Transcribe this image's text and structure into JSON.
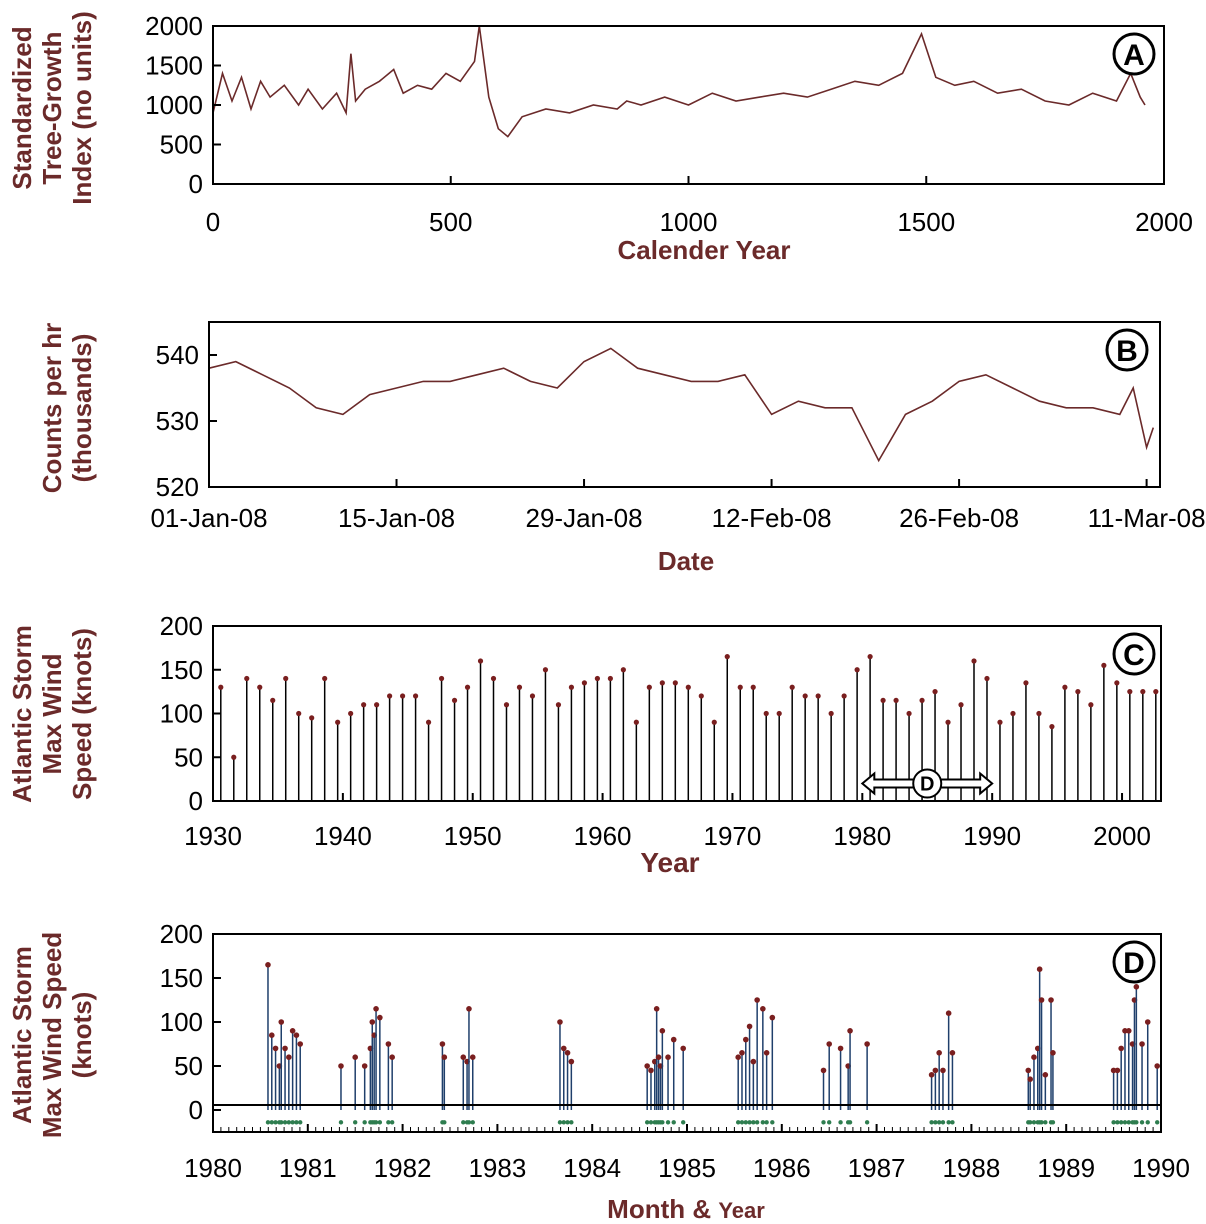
{
  "colors": {
    "series_a": "#6b2a2a",
    "series_b": "#6b2a2a",
    "storm_stem_c": "#000000",
    "storm_marker_c": "#7a1f1f",
    "storm_stem_d": "#1f3f6b",
    "storm_marker_d": "#7a1f1f",
    "genesis_marker_d": "#2e7d4f",
    "axis_title": "#6b2a2a"
  },
  "chart_data": [
    {
      "panel": "A",
      "type": "line",
      "title": "",
      "xlabel": "Calender Year",
      "ylabel_lines": [
        "Standardized",
        "Tree-Growth",
        "Index (no units)"
      ],
      "xlim": [
        0,
        2000
      ],
      "ylim": [
        0,
        2000
      ],
      "xticks": [
        0,
        500,
        1000,
        1500,
        2000
      ],
      "xtick_labels": [
        "0",
        "500",
        "1000",
        "1500",
        "2000"
      ],
      "yticks": [
        0,
        500,
        1000,
        1500,
        2000
      ],
      "ytick_labels": [
        "0",
        "500",
        "1000",
        "1500",
        "2000"
      ],
      "grid": false,
      "series": [
        {
          "x": [
            0,
            20,
            40,
            60,
            80,
            100,
            120,
            150,
            180,
            200,
            230,
            260,
            280,
            290,
            300,
            320,
            350,
            380,
            400,
            430,
            460,
            490,
            520,
            550,
            560,
            580,
            600,
            620,
            650,
            700,
            750,
            800,
            850,
            870,
            900,
            950,
            1000,
            1050,
            1100,
            1150,
            1200,
            1250,
            1300,
            1350,
            1400,
            1450,
            1490,
            1520,
            1560,
            1600,
            1650,
            1700,
            1750,
            1800,
            1850,
            1900,
            1930,
            1950,
            1960
          ],
          "y": [
            900,
            1400,
            1050,
            1350,
            950,
            1300,
            1100,
            1250,
            1000,
            1200,
            950,
            1150,
            900,
            1650,
            1050,
            1200,
            1300,
            1450,
            1150,
            1250,
            1200,
            1400,
            1300,
            1550,
            2000,
            1100,
            700,
            600,
            850,
            950,
            900,
            1000,
            950,
            1050,
            1000,
            1100,
            1000,
            1150,
            1050,
            1100,
            1150,
            1100,
            1200,
            1300,
            1250,
            1400,
            1900,
            1350,
            1250,
            1300,
            1150,
            1200,
            1050,
            1000,
            1150,
            1050,
            1400,
            1100,
            1000
          ]
        }
      ]
    },
    {
      "panel": "B",
      "type": "line",
      "title": "",
      "xlabel": "Date",
      "ylabel_lines": [
        "Counts per hr",
        "(thousands)"
      ],
      "xlim": [
        0,
        71
      ],
      "ylim": [
        520,
        545
      ],
      "xticks": [
        0,
        14,
        28,
        42,
        56,
        70
      ],
      "xtick_labels": [
        "01-Jan-08",
        "15-Jan-08",
        "29-Jan-08",
        "12-Feb-08",
        "26-Feb-08",
        "11-Mar-08"
      ],
      "yticks": [
        520,
        530,
        540
      ],
      "ytick_labels": [
        "520",
        "530",
        "540"
      ],
      "grid": false,
      "series": [
        {
          "x": [
            0,
            2,
            4,
            6,
            8,
            10,
            12,
            14,
            16,
            18,
            20,
            22,
            24,
            26,
            28,
            30,
            32,
            34,
            36,
            38,
            40,
            42,
            44,
            46,
            48,
            49,
            50,
            52,
            54,
            56,
            58,
            60,
            62,
            64,
            66,
            68,
            69,
            70,
            70.5
          ],
          "y": [
            538,
            539,
            537,
            535,
            532,
            531,
            534,
            535,
            536,
            536,
            537,
            538,
            536,
            535,
            539,
            541,
            538,
            537,
            536,
            536,
            537,
            531,
            533,
            532,
            532,
            528,
            524,
            531,
            533,
            536,
            537,
            535,
            533,
            532,
            532,
            531,
            535,
            526,
            529
          ]
        }
      ]
    },
    {
      "panel": "C",
      "type": "scatter",
      "title": "",
      "xlabel": "Year",
      "ylabel_lines": [
        "Atlantic Storm",
        "Max Wind",
        "Speed (knots)"
      ],
      "xlim": [
        1930,
        2003
      ],
      "ylim": [
        0,
        200
      ],
      "xticks": [
        1930,
        1940,
        1950,
        1960,
        1970,
        1980,
        1990,
        2000
      ],
      "xtick_labels": [
        "1930",
        "1940",
        "1950",
        "1960",
        "1970",
        "1980",
        "1990",
        "2000"
      ],
      "yticks": [
        0,
        50,
        100,
        150,
        200
      ],
      "ytick_labels": [
        "0",
        "50",
        "100",
        "150",
        "200"
      ],
      "grid": false,
      "annotation": {
        "label": "D",
        "x_from": 1980,
        "x_to": 1990,
        "y": 20
      },
      "storms_by_year": [
        [
          1930,
          130
        ],
        [
          1931,
          50
        ],
        [
          1932,
          140
        ],
        [
          1933,
          130
        ],
        [
          1934,
          115
        ],
        [
          1935,
          140
        ],
        [
          1936,
          100
        ],
        [
          1937,
          95
        ],
        [
          1938,
          140
        ],
        [
          1939,
          90
        ],
        [
          1940,
          100
        ],
        [
          1941,
          110
        ],
        [
          1942,
          110
        ],
        [
          1943,
          120
        ],
        [
          1944,
          120
        ],
        [
          1945,
          120
        ],
        [
          1946,
          90
        ],
        [
          1947,
          140
        ],
        [
          1948,
          115
        ],
        [
          1949,
          130
        ],
        [
          1950,
          160
        ],
        [
          1951,
          140
        ],
        [
          1952,
          110
        ],
        [
          1953,
          130
        ],
        [
          1954,
          120
        ],
        [
          1955,
          150
        ],
        [
          1956,
          110
        ],
        [
          1957,
          130
        ],
        [
          1958,
          135
        ],
        [
          1959,
          140
        ],
        [
          1960,
          140
        ],
        [
          1961,
          150
        ],
        [
          1962,
          90
        ],
        [
          1963,
          130
        ],
        [
          1964,
          135
        ],
        [
          1965,
          135
        ],
        [
          1966,
          130
        ],
        [
          1967,
          120
        ],
        [
          1968,
          90
        ],
        [
          1969,
          165
        ],
        [
          1970,
          130
        ],
        [
          1971,
          130
        ],
        [
          1972,
          100
        ],
        [
          1973,
          100
        ],
        [
          1974,
          130
        ],
        [
          1975,
          120
        ],
        [
          1976,
          120
        ],
        [
          1977,
          100
        ],
        [
          1978,
          120
        ],
        [
          1979,
          150
        ],
        [
          1980,
          165
        ],
        [
          1981,
          115
        ],
        [
          1982,
          115
        ],
        [
          1983,
          100
        ],
        [
          1984,
          115
        ],
        [
          1985,
          125
        ],
        [
          1986,
          90
        ],
        [
          1987,
          110
        ],
        [
          1988,
          160
        ],
        [
          1989,
          140
        ],
        [
          1990,
          90
        ],
        [
          1991,
          100
        ],
        [
          1992,
          135
        ],
        [
          1993,
          100
        ],
        [
          1994,
          85
        ],
        [
          1995,
          130
        ],
        [
          1996,
          125
        ],
        [
          1997,
          110
        ],
        [
          1998,
          155
        ],
        [
          1999,
          135
        ],
        [
          2000,
          125
        ],
        [
          2001,
          125
        ],
        [
          2002,
          125
        ]
      ]
    },
    {
      "panel": "D",
      "type": "scatter",
      "title": "",
      "xlabel_parts": [
        "Month & ",
        "Year"
      ],
      "ylabel_lines": [
        "Atlantic Storm",
        "Max Wind Speed",
        "(knots)"
      ],
      "xlim": [
        1980,
        1990
      ],
      "ylim": [
        -25,
        200
      ],
      "xticks": [
        1980,
        1981,
        1982,
        1983,
        1984,
        1985,
        1986,
        1987,
        1988,
        1989,
        1990
      ],
      "xtick_labels": [
        "1980",
        "1981",
        "1982",
        "1983",
        "1984",
        "1985",
        "1986",
        "1987",
        "1988",
        "1989",
        "1990"
      ],
      "yticks": [
        0,
        50,
        100,
        150,
        200
      ],
      "ytick_labels": [
        "0",
        "50",
        "100",
        "150",
        "200"
      ],
      "grid": false,
      "storms": [
        [
          1980.58,
          165
        ],
        [
          1980.62,
          85
        ],
        [
          1980.66,
          70
        ],
        [
          1980.7,
          50
        ],
        [
          1980.72,
          100
        ],
        [
          1980.76,
          70
        ],
        [
          1980.8,
          60
        ],
        [
          1980.84,
          90
        ],
        [
          1980.88,
          85
        ],
        [
          1980.92,
          75
        ],
        [
          1981.35,
          50
        ],
        [
          1981.5,
          60
        ],
        [
          1981.6,
          50
        ],
        [
          1981.66,
          70
        ],
        [
          1981.68,
          100
        ],
        [
          1981.7,
          85
        ],
        [
          1981.72,
          115
        ],
        [
          1981.76,
          105
        ],
        [
          1981.85,
          75
        ],
        [
          1981.89,
          60
        ],
        [
          1982.42,
          75
        ],
        [
          1982.44,
          60
        ],
        [
          1982.64,
          60
        ],
        [
          1982.68,
          55
        ],
        [
          1982.7,
          115
        ],
        [
          1982.74,
          60
        ],
        [
          1983.66,
          100
        ],
        [
          1983.7,
          70
        ],
        [
          1983.74,
          65
        ],
        [
          1983.78,
          55
        ],
        [
          1984.58,
          50
        ],
        [
          1984.62,
          45
        ],
        [
          1984.66,
          55
        ],
        [
          1984.68,
          115
        ],
        [
          1984.7,
          60
        ],
        [
          1984.72,
          50
        ],
        [
          1984.74,
          90
        ],
        [
          1984.8,
          60
        ],
        [
          1984.86,
          80
        ],
        [
          1984.96,
          70
        ],
        [
          1985.54,
          60
        ],
        [
          1985.58,
          65
        ],
        [
          1985.62,
          80
        ],
        [
          1985.66,
          95
        ],
        [
          1985.7,
          55
        ],
        [
          1985.74,
          125
        ],
        [
          1985.8,
          115
        ],
        [
          1985.84,
          65
        ],
        [
          1985.9,
          105
        ],
        [
          1986.44,
          45
        ],
        [
          1986.5,
          75
        ],
        [
          1986.62,
          70
        ],
        [
          1986.7,
          50
        ],
        [
          1986.72,
          90
        ],
        [
          1986.9,
          75
        ],
        [
          1987.58,
          40
        ],
        [
          1987.62,
          45
        ],
        [
          1987.66,
          65
        ],
        [
          1987.7,
          45
        ],
        [
          1987.76,
          110
        ],
        [
          1987.8,
          65
        ],
        [
          1988.6,
          45
        ],
        [
          1988.62,
          35
        ],
        [
          1988.66,
          60
        ],
        [
          1988.7,
          70
        ],
        [
          1988.72,
          160
        ],
        [
          1988.74,
          125
        ],
        [
          1988.78,
          40
        ],
        [
          1988.84,
          125
        ],
        [
          1988.86,
          65
        ],
        [
          1989.5,
          45
        ],
        [
          1989.54,
          45
        ],
        [
          1989.58,
          70
        ],
        [
          1989.62,
          90
        ],
        [
          1989.66,
          90
        ],
        [
          1989.7,
          75
        ],
        [
          1989.72,
          125
        ],
        [
          1989.74,
          140
        ],
        [
          1989.8,
          75
        ],
        [
          1989.86,
          100
        ],
        [
          1989.96,
          50
        ]
      ],
      "genesis_y": -14
    }
  ]
}
